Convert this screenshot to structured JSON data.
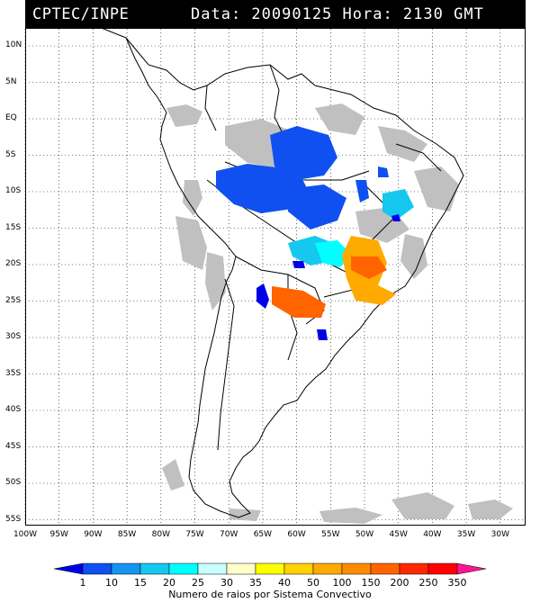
{
  "header": {
    "source": "CPTEC/INPE",
    "datetime": "Data: 20090125 Hora: 2130 GMT"
  },
  "axes": {
    "lat_labels": [
      "10N",
      "5N",
      "EQ",
      "5S",
      "10S",
      "15S",
      "20S",
      "25S",
      "30S",
      "35S",
      "40S",
      "45S",
      "50S",
      "55S"
    ],
    "lon_labels": [
      "100W",
      "95W",
      "90W",
      "85W",
      "80W",
      "75W",
      "70W",
      "65W",
      "60W",
      "55W",
      "50W",
      "45W",
      "40W",
      "35W",
      "30W"
    ]
  },
  "colorbar": {
    "labels": [
      "1",
      "10",
      "15",
      "20",
      "25",
      "30",
      "35",
      "40",
      "50",
      "100",
      "150",
      "200",
      "250",
      "350"
    ],
    "colors": [
      "#0000e6",
      "#1050f0",
      "#1496f0",
      "#14c8f0",
      "#00ffff",
      "#c8ffff",
      "#ffffc8",
      "#ffff00",
      "#ffd200",
      "#ffaa00",
      "#ff8c00",
      "#ff6400",
      "#ff2800",
      "#ff0000",
      "#ff1493"
    ],
    "caption": "Numero de raios por Sistema Convectivo"
  },
  "legend_colors": {
    "land_outline": "#000000",
    "cloud_cover": "#c0c0c0",
    "dark_blue": "#0000e6",
    "blue": "#1050f0",
    "light_blue": "#14c8f0",
    "cyan": "#00ffff",
    "orange": "#ffaa00",
    "dark_orange": "#ff6400"
  }
}
